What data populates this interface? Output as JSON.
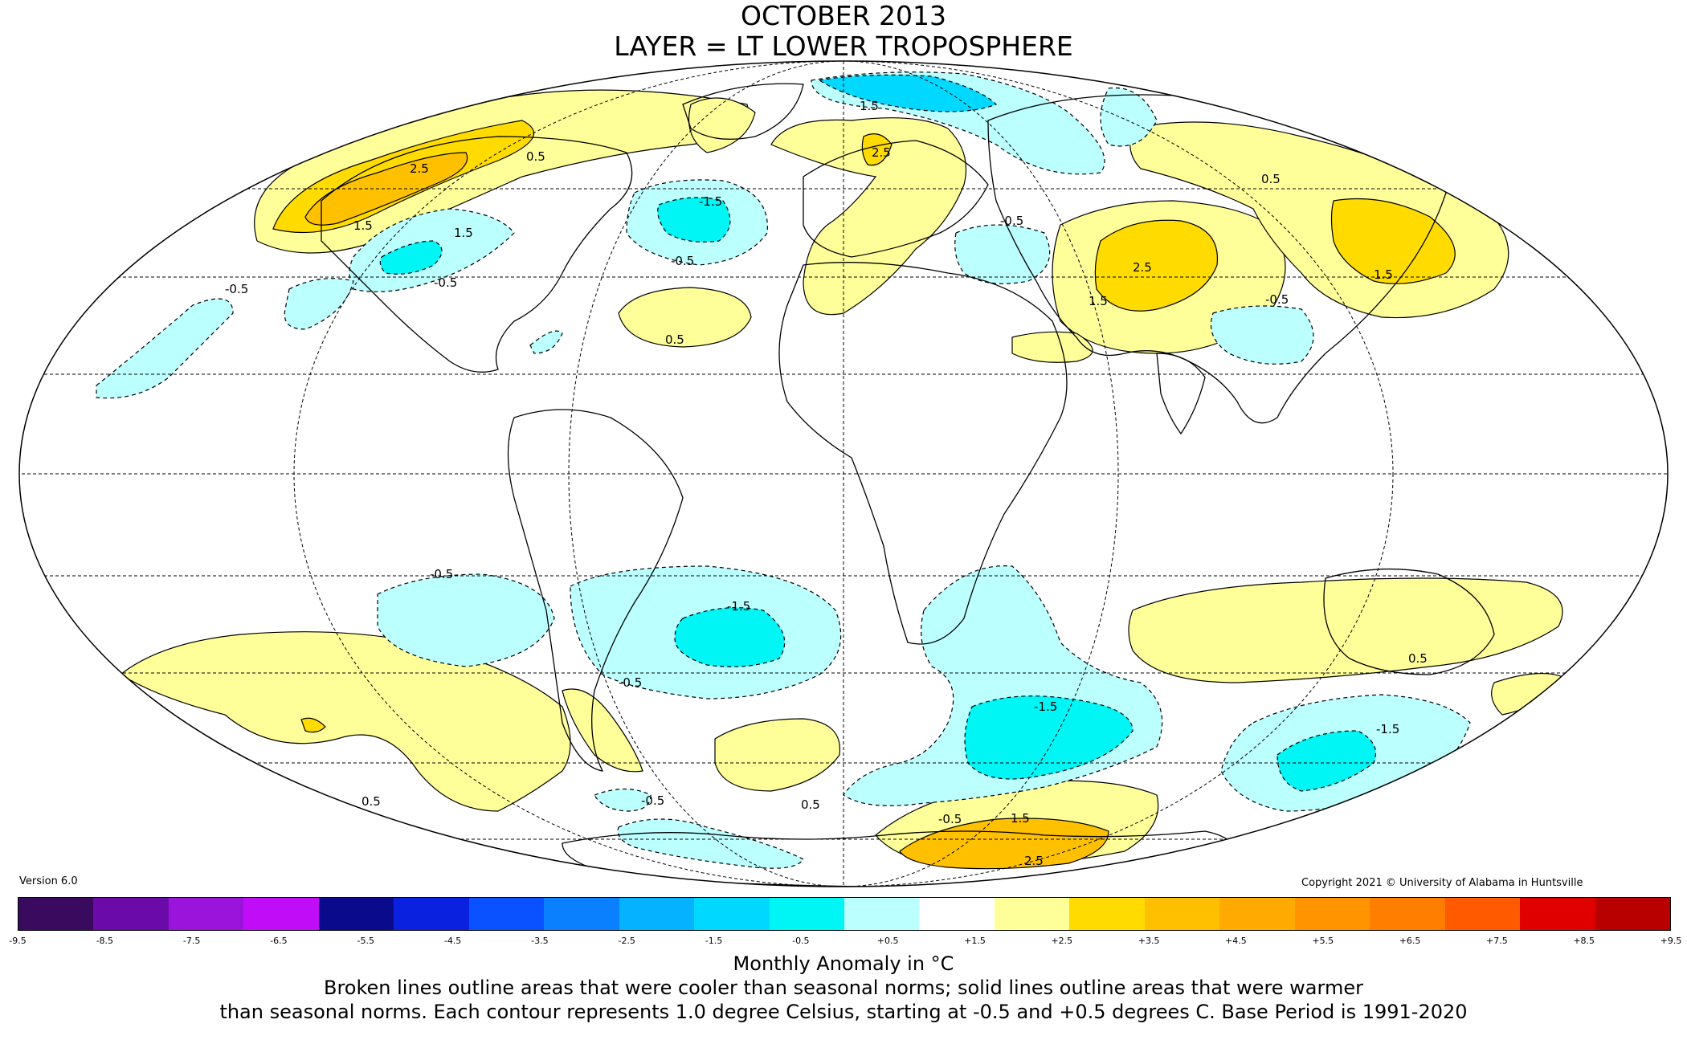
{
  "title": {
    "line1": "OCTOBER 2013",
    "line2": "LAYER = LT LOWER TROPOSPHERE"
  },
  "version": "Version 6.0",
  "copyright": "Copyright 2021 © University of Alabama in Huntsville",
  "colorbar": {
    "colors": [
      "#3a0a5e",
      "#6a0aa8",
      "#9b14dc",
      "#c10cf7",
      "#0a0a8c",
      "#0a22e0",
      "#0a52ff",
      "#0a80ff",
      "#05b2ff",
      "#00d8ff",
      "#00f5f5",
      "#bbffff",
      "#ffffff",
      "#ffff9a",
      "#ffdb00",
      "#ffc000",
      "#ffaa00",
      "#ff9400",
      "#ff7e00",
      "#ff5a00",
      "#e00000",
      "#b80000"
    ],
    "tick_labels": [
      "-9.5",
      "-8.5",
      "-7.5",
      "-6.5",
      "-5.5",
      "-4.5",
      "-3.5",
      "-2.5",
      "-1.5",
      "-0.5",
      "+0.5",
      "+1.5",
      "+2.5",
      "+3.5",
      "+4.5",
      "+5.5",
      "+6.5",
      "+7.5",
      "+8.5",
      "+9.5"
    ],
    "label": "Monthly Anomaly in °C"
  },
  "notes": {
    "line1": "Broken lines outline areas that were cooler than seasonal norms; solid lines outline areas that were warmer",
    "line2": "than seasonal norms. Each contour represents 1.0 degree Celsius, starting at -0.5 and +0.5 degrees C. Base Period is 1991-2020"
  },
  "map": {
    "colors": {
      "warm1": "#ffff9a",
      "warm2": "#ffdb00",
      "warm3": "#ffc000",
      "cool1": "#bbffff",
      "cool2": "#00f5f5",
      "cool3": "#00d8ff"
    },
    "contour_labels": [
      "0.5",
      "1.5",
      "2.5",
      "-0.5",
      "-1.5"
    ]
  }
}
